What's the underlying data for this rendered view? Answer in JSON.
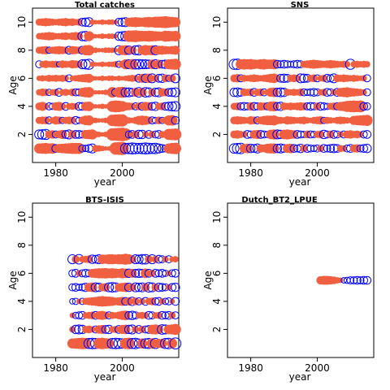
{
  "chart_data": [
    {
      "type": "scatter",
      "title": "Total catches",
      "xlabel": "year",
      "ylabel": "Age",
      "xlim": [
        1973,
        2017
      ],
      "ylim": [
        0,
        11
      ],
      "x_ticks": [
        "1980",
        "2000"
      ],
      "y_ticks": [
        "2",
        "4",
        "6",
        "8",
        "10"
      ],
      "ages": [
        1,
        2,
        3,
        4,
        5,
        6,
        7,
        8,
        9,
        10
      ],
      "year_range": [
        1975,
        2016
      ],
      "residuals": {
        "1": [
          1.0,
          1.1,
          1.2,
          1.0,
          1.1,
          -0.6,
          0.8,
          0.9,
          1.0,
          1.1,
          1.2,
          1.2,
          1.2,
          -0.5,
          -0.4,
          -0.6,
          -0.8,
          0.5,
          0.4,
          0.3,
          0.2,
          0.2,
          0.3,
          1.5,
          1.6,
          1.7,
          -1.0,
          -1.1,
          -1.2,
          -1.1,
          -1.0,
          -1.1,
          -1.2,
          -1.1,
          -1.0,
          -1.1,
          -0.8,
          -0.6,
          -0.5,
          1.0,
          1.2,
          1.3
        ],
        "2": [
          -0.8,
          -0.9,
          -1.0,
          0.6,
          0.7,
          -0.5,
          0.6,
          0.8,
          -0.6,
          -0.8,
          0.7,
          -0.6,
          -0.6,
          -0.5,
          0.8,
          0.9,
          1.0,
          0.4,
          0.3,
          0.2,
          0.3,
          0.4,
          1.5,
          1.6,
          1.7,
          1.8,
          1.5,
          -0.5,
          -0.6,
          0.6,
          -0.7,
          -0.7,
          0.4,
          -0.6,
          0.5,
          -0.5,
          -0.6,
          0.5,
          0.4,
          1.2,
          1.3,
          1.4
        ],
        "3": [
          0.5,
          0.6,
          0.6,
          -0.5,
          0.4,
          0.7,
          0.6,
          -0.4,
          0.5,
          0.6,
          0.5,
          -0.6,
          -0.4,
          0.6,
          0.9,
          1.0,
          0.3,
          0.3,
          0.2,
          0.2,
          0.3,
          0.3,
          1.3,
          1.4,
          1.5,
          1.5,
          0.4,
          0.4,
          0.3,
          0.5,
          0.8,
          0.9,
          0.8,
          0.6,
          -0.5,
          -0.4,
          0.6,
          -0.4,
          0.5,
          1.0,
          1.1,
          -0.6
        ],
        "4": [
          0.6,
          0.8,
          0.4,
          -0.5,
          -0.4,
          0.7,
          0.8,
          0.5,
          -0.6,
          0.4,
          0.5,
          0.4,
          -0.6,
          -0.6,
          0.8,
          0.9,
          0.3,
          0.2,
          0.2,
          0.3,
          0.2,
          0.3,
          1.2,
          1.4,
          1.3,
          1.1,
          0.7,
          0.6,
          0.5,
          -0.5,
          0.6,
          -0.6,
          0.8,
          0.7,
          -0.6,
          -0.7,
          0.5,
          0.6,
          -0.6,
          -0.7,
          -0.8,
          -0.9
        ],
        "5": [
          0.4,
          0.6,
          0.5,
          -0.4,
          0.4,
          0.5,
          -0.6,
          0.4,
          0.5,
          0.3,
          0.6,
          -0.5,
          -0.5,
          0.8,
          1.0,
          1.1,
          0.2,
          0.2,
          0.2,
          0.2,
          0.3,
          0.3,
          1.1,
          -0.6,
          1.1,
          1.2,
          -0.8,
          -0.8,
          -0.6,
          0.8,
          -0.9,
          0.8,
          -0.9,
          -0.8,
          0.6,
          -0.7,
          -0.8,
          0.7,
          0.6,
          -0.6,
          -0.7,
          -0.8
        ],
        "6": [
          0.3,
          0.4,
          0.3,
          0.5,
          0.4,
          0.5,
          0.4,
          0.5,
          0.4,
          -0.5,
          0.3,
          0.4,
          0.5,
          0.6,
          0.7,
          0.8,
          0.3,
          0.2,
          0.2,
          0.3,
          0.2,
          0.3,
          0.3,
          0.2,
          0.3,
          0.2,
          0.3,
          0.4,
          0.5,
          0.4,
          -0.6,
          0.8,
          -0.7,
          0.9,
          -0.8,
          0.5,
          -0.6,
          -0.7,
          0.6,
          -0.4,
          0.6,
          -0.8
        ],
        "7": [
          -0.5,
          0.4,
          0.6,
          0.4,
          0.5,
          0.5,
          -0.3,
          0.6,
          0.5,
          0.4,
          0.7,
          0.6,
          0.5,
          -0.8,
          -0.9,
          -1.0,
          0.3,
          0.2,
          0.2,
          0.3,
          0.2,
          0.3,
          0.3,
          0.4,
          -0.4,
          0.5,
          1.0,
          -0.8,
          1.1,
          -0.9,
          -0.9,
          -0.8,
          -0.8,
          -0.7,
          0.9,
          -0.8,
          0.8,
          -0.6,
          -0.7,
          1.0,
          1.1,
          1.2
        ],
        "8": [
          0.5,
          0.6,
          0.7,
          -0.4,
          0.5,
          0.6,
          0.7,
          0.6,
          0.5,
          -0.6,
          0.7,
          0.6,
          0.5,
          -0.6,
          1.0,
          1.1,
          0.3,
          0.3,
          0.2,
          0.2,
          0.3,
          0.3,
          0.3,
          0.2,
          -0.8,
          0.9,
          1.0,
          -0.7,
          0.7,
          -0.8,
          -0.9,
          0.8,
          1.1,
          0.9,
          1.0,
          -0.8,
          0.8,
          0.8,
          0.7,
          0.6,
          0.7,
          0.8
        ],
        "9": [
          0.4,
          0.5,
          0.6,
          0.7,
          0.6,
          0.4,
          0.4,
          0.5,
          0.6,
          0.4,
          0.6,
          0.7,
          0.6,
          -0.8,
          -0.9,
          1.0,
          0.3,
          0.2,
          0.2,
          0.3,
          0.2,
          0.3,
          0.3,
          0.2,
          -0.7,
          -0.8,
          -0.9,
          1.3,
          1.3,
          1.4,
          1.2,
          1.1,
          1.1,
          1.2,
          1.1,
          1.0,
          0.9,
          0.8,
          1.2,
          1.1,
          1.0,
          1.1
        ],
        "10": [
          0.5,
          0.6,
          0.7,
          0.6,
          0.5,
          0.4,
          0.5,
          0.6,
          0.7,
          0.5,
          0.6,
          0.4,
          0.5,
          -0.6,
          -0.7,
          -0.8,
          0.3,
          0.2,
          0.2,
          0.3,
          0.2,
          0.3,
          0.3,
          0.2,
          -0.6,
          -0.7,
          -0.8,
          0.8,
          0.9,
          1.0,
          0.9,
          0.8,
          1.0,
          1.1,
          1.0,
          1.2,
          1.2,
          1.3,
          1.4,
          1.2,
          1.1,
          1.0
        ]
      }
    },
    {
      "type": "scatter",
      "title": "SNS",
      "xlabel": "year",
      "ylabel": "Age",
      "xlim": [
        1973,
        2017
      ],
      "ylim": [
        0,
        11
      ],
      "x_ticks": [
        "1980",
        "2000"
      ],
      "y_ticks": [
        "2",
        "4",
        "6",
        "8",
        "10"
      ],
      "ages": [
        1,
        2,
        3,
        4,
        5,
        6,
        7
      ],
      "year_range": [
        1975,
        2015
      ],
      "residuals": {
        "1": [
          -0.9,
          -1.0,
          -1.1,
          0.8,
          0.9,
          -0.7,
          -0.6,
          -0.8,
          0.7,
          0.6,
          0.9,
          1.0,
          1.0,
          -0.7,
          -0.8,
          -0.6,
          0.8,
          0.9,
          -0.6,
          -0.5,
          -0.7,
          0.6,
          -0.6,
          -0.5,
          -0.4,
          -0.5,
          0.5,
          -0.6,
          -0.5,
          -0.6,
          -0.7,
          -0.6,
          0.5,
          0.4,
          -0.5,
          -0.6,
          0.6,
          0.7,
          -0.5,
          -0.6,
          -0.7
        ],
        "2": [
          0.6,
          0.7,
          0.5,
          0.4,
          -0.6,
          -0.5,
          0.7,
          0.8,
          -0.6,
          -0.5,
          -0.4,
          0.9,
          1.0,
          -0.8,
          -0.7,
          0.9,
          1.0,
          0.8,
          0.7,
          -0.6,
          -0.5,
          -0.4,
          0.6,
          -0.5,
          -0.4,
          0.5,
          0.6,
          -0.7,
          -0.5,
          0.6,
          -0.6,
          -0.5,
          0.4,
          -0.5,
          0.6,
          0.7,
          0.5,
          0.6,
          0.4,
          -0.5,
          -0.6
        ],
        "3": [
          0.6,
          0.7,
          0.6,
          0.5,
          0.4,
          0.7,
          0.6,
          -0.5,
          0.6,
          0.8,
          0.9,
          0.9,
          1.0,
          0.6,
          0.5,
          0.4,
          0.7,
          0.6,
          0.5,
          0.4,
          0.5,
          0.6,
          0.4,
          0.3,
          0.5,
          0.6,
          0.7,
          -0.4,
          0.5,
          0.4,
          0.3,
          0.5,
          0.6,
          0.5,
          0.4,
          0.3,
          0.8,
          0.9,
          1.0,
          1.1,
          1.2
        ],
        "4": [
          0.5,
          0.6,
          -0.5,
          -0.6,
          -0.5,
          0.7,
          -0.6,
          -0.5,
          0.7,
          0.6,
          -0.5,
          0.9,
          1.0,
          -0.6,
          -0.7,
          0.6,
          0.5,
          0.6,
          0.5,
          0.6,
          0.7,
          0.6,
          -0.5,
          -0.6,
          -0.5,
          0.6,
          -0.6,
          -0.5,
          -0.4,
          0.5,
          0.6,
          -0.5,
          0.8,
          0.9,
          1.2,
          1.3,
          1.4,
          1.3,
          1.4,
          -0.6,
          -0.5
        ],
        "5": [
          -0.7,
          -0.8,
          -0.6,
          0.6,
          0.5,
          0.6,
          -0.6,
          0.5,
          0.6,
          -0.5,
          0.4,
          0.8,
          0.9,
          -0.7,
          -0.8,
          -0.7,
          0.5,
          0.4,
          0.5,
          0.4,
          0.6,
          -0.5,
          -0.4,
          -0.5,
          -0.6,
          -0.5,
          0.4,
          0.5,
          -0.6,
          -0.5,
          0.4,
          -0.6,
          0.8,
          0.9,
          1.0,
          0.8,
          0.7,
          0.6,
          0.5,
          0.4,
          -0.5
        ],
        "6": [
          0.6,
          0.7,
          -0.5,
          0.5,
          0.4,
          0.5,
          0.6,
          0.5,
          0.4,
          0.5,
          0.6,
          0.8,
          0.9,
          0.5,
          -0.6,
          -0.7,
          -0.6,
          0.5,
          0.6,
          0.5,
          -0.8,
          -0.7,
          -0.6,
          0.5,
          0.6,
          -0.5,
          0.4,
          0.5,
          -0.6,
          -0.5,
          -0.8,
          0.6,
          0.5,
          0.6,
          0.5,
          0.4,
          0.5,
          0.4,
          0.3,
          0.4,
          -0.5
        ],
        "7": [
          -1.0,
          -1.1,
          1.0,
          1.1,
          1.0,
          1.1,
          0.9,
          0.8,
          1.0,
          1.1,
          0.9,
          0.9,
          1.0,
          -0.6,
          -0.5,
          -0.6,
          -0.5,
          -0.4,
          -0.5,
          -0.6,
          -0.5,
          0.5,
          0.6,
          0.7,
          0.8,
          0.7,
          0.6,
          0.5,
          0.6,
          0.7,
          0.6,
          0.5,
          0.4,
          0.5,
          0.4,
          -1.0,
          0.4,
          0.5,
          0.4,
          0.5,
          0.4
        ]
      }
    },
    {
      "type": "scatter",
      "title": "BTS-ISIS",
      "xlabel": "year",
      "ylabel": "Age",
      "xlim": [
        1973,
        2017
      ],
      "ylim": [
        0,
        11
      ],
      "x_ticks": [
        "1980",
        "2000"
      ],
      "y_ticks": [
        "2",
        "4",
        "6",
        "8",
        "10"
      ],
      "ages": [
        1,
        2,
        3,
        4,
        5,
        6,
        7
      ],
      "year_range": [
        1985,
        2016
      ],
      "residuals": {
        "1": [
          1.0,
          1.1,
          1.2,
          1.3,
          1.2,
          -1.0,
          -1.1,
          -1.0,
          1.2,
          1.3,
          1.1,
          1.0,
          -1.0,
          -1.1,
          -1.0,
          -0.9,
          1.2,
          1.3,
          -1.0,
          -1.1,
          -0.8,
          1.0,
          -0.9,
          -1.0,
          1.1,
          -1.0,
          0.8,
          0.9,
          -1.0,
          -1.1,
          1.0,
          -1.2
        ],
        "2": [
          0.4,
          -0.7,
          -0.8,
          -0.7,
          0.5,
          0.6,
          0.4,
          -0.5,
          0.7,
          0.8,
          -0.6,
          -0.7,
          0.4,
          0.5,
          -0.6,
          0.8,
          0.9,
          -0.7,
          -0.8,
          0.5,
          -0.6,
          0.5,
          -0.5,
          -0.6,
          0.9,
          1.0,
          0.8,
          -0.9,
          -0.8,
          0.9,
          1.0,
          1.2
        ],
        "3": [
          0.3,
          -0.4,
          -0.5,
          -0.6,
          0.4,
          0.5,
          0.6,
          -0.6,
          0.7,
          0.8,
          0.6,
          -0.5,
          0.5,
          0.4,
          0.6,
          0.8,
          0.9,
          -0.6,
          -0.7,
          -0.5,
          0.4,
          0.5,
          0.4,
          -0.6,
          -0.5,
          0.4,
          0.5,
          -0.6,
          -0.5,
          -0.6,
          0.5,
          -0.5
        ],
        "4": [
          -0.3,
          -0.4,
          0.3,
          -0.4,
          0.5,
          0.6,
          0.7,
          0.8,
          1.0,
          1.1,
          1.0,
          0.9,
          0.8,
          0.6,
          0.7,
          0.8,
          -0.6,
          0.7,
          -0.7,
          0.6,
          -0.5,
          0.4,
          -0.6,
          0.5,
          0.6,
          -0.5,
          -0.6,
          0.4,
          -0.4,
          -0.5,
          0.3,
          -0.6
        ],
        "5": [
          -0.5,
          -0.6,
          -0.4,
          -0.5,
          -0.7,
          0.8,
          0.9,
          -0.8,
          -0.7,
          0.6,
          0.7,
          -0.8,
          -0.9,
          -0.8,
          0.7,
          0.8,
          0.9,
          -0.7,
          0.6,
          -0.8,
          -0.7,
          -0.8,
          0.7,
          -0.9,
          -0.8,
          0.6,
          -0.7,
          -0.6,
          -0.5,
          0.4,
          -0.6,
          -0.7
        ],
        "6": [
          -0.5,
          -0.6,
          0.4,
          -0.5,
          -0.6,
          -0.5,
          0.8,
          0.9,
          1.0,
          1.0,
          1.1,
          0.9,
          1.0,
          0.9,
          0.8,
          1.0,
          0.9,
          -0.7,
          0.8,
          -0.6,
          -0.7,
          -0.6,
          0.9,
          -0.6,
          0.5,
          -0.6,
          -0.5,
          -0.6,
          -0.4,
          0.3,
          -0.5,
          -0.6
        ],
        "7": [
          -0.8,
          0.6,
          -0.9,
          0.4,
          0.5,
          0.6,
          -0.7,
          -0.6,
          -0.8,
          0.9,
          0.8,
          1.0,
          1.0,
          0.9,
          1.0,
          1.0,
          1.2,
          1.0,
          0.6,
          -0.8,
          -0.7,
          -0.9,
          -0.9,
          0.6,
          -0.8,
          0.5,
          -0.6,
          -0.5,
          0.4,
          -0.5,
          0.3,
          0.4
        ]
      }
    },
    {
      "type": "scatter",
      "title": "Dutch_BT2_LPUE",
      "xlabel": "year",
      "ylabel": "Age",
      "xlim": [
        1973,
        2017
      ],
      "ylim": [
        0,
        11
      ],
      "x_ticks": [
        "1980",
        "2000"
      ],
      "y_ticks": [
        "2",
        "4",
        "6",
        "8",
        "10"
      ],
      "ages": [
        5.5
      ],
      "year_range": [
        2001,
        2015
      ],
      "residuals": {
        "5.5": [
          0.7,
          0.8,
          0.8,
          0.7,
          0.6,
          0.4,
          0.3,
          -0.3,
          -0.4,
          -0.5,
          -0.5,
          -0.6,
          -0.5,
          -0.6,
          -0.6
        ]
      }
    }
  ],
  "colors": {
    "positive": "#F15F41",
    "negative": "#0000FF",
    "axis": "#000000"
  }
}
